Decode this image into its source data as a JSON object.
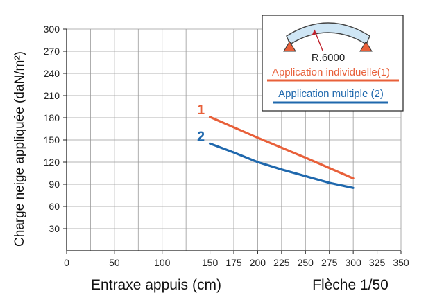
{
  "chart_data": {
    "type": "line",
    "title": "",
    "xlabel": "Entraxe appuis (cm)",
    "ylabel": "Charge neige appliquée (daN/m²)",
    "footnote": "Flèche 1/50",
    "xlim": [
      0,
      350
    ],
    "ylim": [
      0,
      300
    ],
    "xticks": [
      0,
      50,
      100,
      150,
      175,
      200,
      225,
      250,
      275,
      300,
      325,
      350
    ],
    "yticks": [
      30,
      60,
      90,
      120,
      150,
      180,
      210,
      240,
      270,
      300
    ],
    "grid": true,
    "series": [
      {
        "name": "Application individuelle(1)",
        "label": "1",
        "color": "#e8603a",
        "points": [
          [
            150,
            181
          ],
          [
            200,
            153
          ],
          [
            250,
            126
          ],
          [
            300,
            98
          ]
        ]
      },
      {
        "name": "Application multiple (2)",
        "label": "2",
        "color": "#1f68ad",
        "points": [
          [
            150,
            145
          ],
          [
            175,
            133
          ],
          [
            200,
            120
          ],
          [
            225,
            110
          ],
          [
            250,
            101
          ],
          [
            275,
            92
          ],
          [
            300,
            85
          ]
        ]
      }
    ],
    "legend": {
      "position": "top-right",
      "diagram_label": "R.6000",
      "diagram_color": "#cfe6f5",
      "support_color": "#e8603a"
    }
  }
}
